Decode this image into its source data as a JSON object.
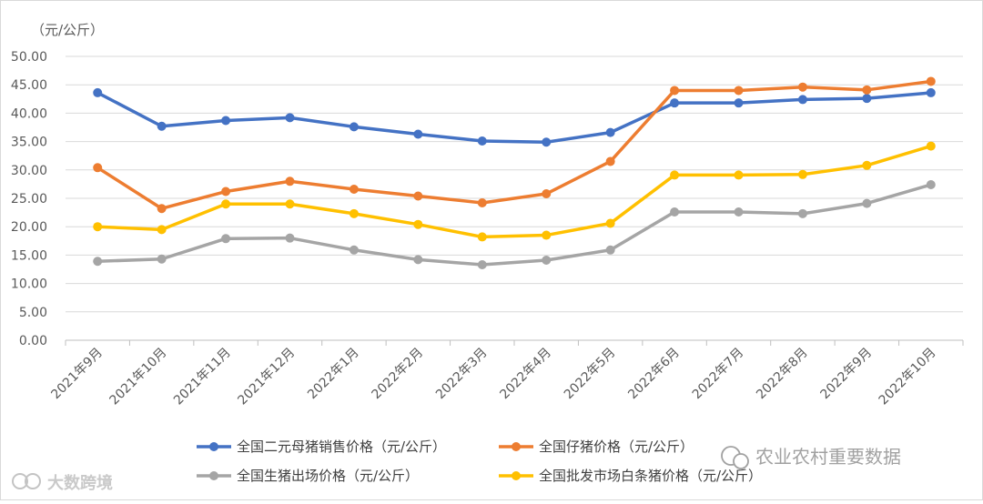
{
  "chart_data": {
    "type": "line",
    "unit_label": "（元/公斤）",
    "ylim": [
      0,
      50
    ],
    "y_ticks": [
      "0.00",
      "5.00",
      "10.00",
      "15.00",
      "20.00",
      "25.00",
      "30.00",
      "35.00",
      "40.00",
      "45.00",
      "50.00"
    ],
    "grid": true,
    "legend_position": "bottom",
    "categories": [
      "2021年9月",
      "2021年10月",
      "2021年11月",
      "2021年12月",
      "2022年1月",
      "2022年2月",
      "2022年3月",
      "2022年4月",
      "2022年5月",
      "2022年6月",
      "2022年7月",
      "2022年8月",
      "2022年9月",
      "2022年10月"
    ],
    "series": [
      {
        "name": "全国二元母猪销售价格（元/公斤）",
        "color": "#4472c4",
        "values": [
          43.6,
          37.7,
          38.7,
          39.2,
          37.6,
          36.3,
          35.1,
          34.9,
          36.6,
          41.8,
          41.8,
          42.4,
          42.6,
          43.6
        ]
      },
      {
        "name": "全国仔猪价格（元/公斤）",
        "color": "#ed7d31",
        "values": [
          30.4,
          23.2,
          26.2,
          28.0,
          26.6,
          25.4,
          24.2,
          25.8,
          31.5,
          44.0,
          44.0,
          44.6,
          44.1,
          45.6
        ]
      },
      {
        "name": "全国生猪出场价格（元/公斤）",
        "color": "#a5a5a5",
        "values": [
          13.9,
          14.3,
          17.9,
          18.0,
          15.9,
          14.2,
          13.3,
          14.1,
          15.9,
          22.6,
          22.6,
          22.3,
          24.1,
          27.4
        ]
      },
      {
        "name": "全国批发市场白条猪价格（元/公斤）",
        "color": "#ffc000",
        "values": [
          20.0,
          19.5,
          24.0,
          24.0,
          22.3,
          20.4,
          18.2,
          18.5,
          20.6,
          29.1,
          29.1,
          29.2,
          30.8,
          34.2
        ]
      }
    ]
  },
  "watermarks": {
    "bottom_left": "大数跨境",
    "bottom_right": "农业农村重要数据"
  }
}
